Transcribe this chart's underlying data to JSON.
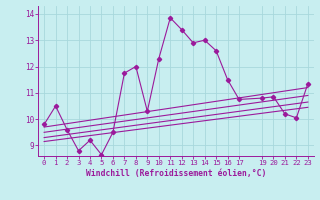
{
  "xlabel": "Windchill (Refroidissement éolien,°C)",
  "background_color": "#c8eef0",
  "line_color": "#9b1a9b",
  "grid_color": "#a8d8dc",
  "xlim": [
    -0.5,
    23.5
  ],
  "ylim": [
    8.6,
    14.3
  ],
  "xticks": [
    0,
    1,
    2,
    3,
    4,
    5,
    6,
    7,
    8,
    9,
    10,
    11,
    12,
    13,
    14,
    15,
    16,
    17,
    19,
    20,
    21,
    22,
    23
  ],
  "yticks": [
    9,
    10,
    11,
    12,
    13,
    14
  ],
  "main_series_x": [
    0,
    1,
    2,
    3,
    4,
    5,
    6,
    7,
    8,
    9,
    10,
    11,
    12,
    13,
    14,
    15,
    16,
    17,
    19,
    20,
    21,
    22,
    23
  ],
  "main_series_y": [
    9.8,
    10.5,
    9.6,
    8.8,
    9.2,
    8.65,
    9.5,
    11.75,
    12.0,
    10.3,
    12.3,
    13.85,
    13.4,
    12.9,
    13.0,
    12.6,
    11.5,
    10.75,
    10.8,
    10.85,
    10.2,
    10.05,
    11.35
  ],
  "trend_lines": [
    {
      "x": [
        0,
        23
      ],
      "y": [
        9.15,
        10.45
      ]
    },
    {
      "x": [
        0,
        23
      ],
      "y": [
        9.3,
        10.65
      ]
    },
    {
      "x": [
        0,
        23
      ],
      "y": [
        9.5,
        10.9
      ]
    },
    {
      "x": [
        0,
        23
      ],
      "y": [
        9.7,
        11.2
      ]
    }
  ]
}
